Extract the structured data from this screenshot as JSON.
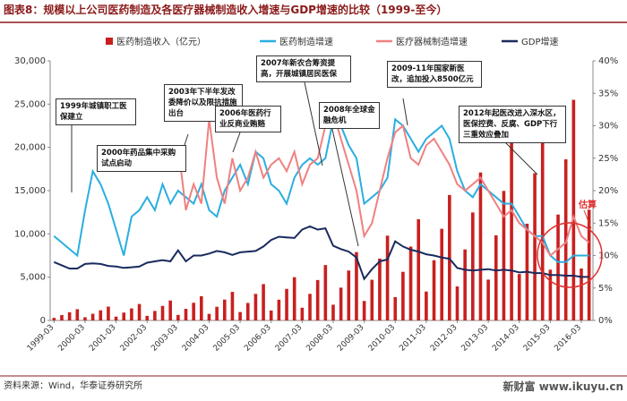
{
  "chart_data": {
    "type": "bar-line",
    "title": "图表8：规模以上公司医药制造及各医疗器械制造收入增速与GDP增速的比较（1999-至今）",
    "source": "资料来源：Wind，华泰证券研究所",
    "watermark": "新财富 www.ikuyu.cn",
    "categories": [
      "1999-03",
      null,
      null,
      null,
      "2000-03",
      null,
      null,
      null,
      "2001-03",
      null,
      null,
      null,
      "2002-03",
      null,
      null,
      null,
      "2003-03",
      null,
      null,
      null,
      "2004-03",
      null,
      null,
      null,
      "2005-03",
      null,
      null,
      null,
      "2006-03",
      null,
      null,
      null,
      "2007-03",
      null,
      null,
      null,
      "2008-03",
      null,
      null,
      null,
      "2009-03",
      null,
      null,
      null,
      "2010-03",
      null,
      null,
      null,
      "2011-03",
      null,
      null,
      null,
      "2012-03",
      null,
      null,
      null,
      "2013-03",
      null,
      null,
      null,
      "2014-03",
      null,
      null,
      null,
      "2015-03",
      null,
      null,
      null,
      "2016-03",
      null
    ],
    "ylim": [
      0,
      30000
    ],
    "yticks": [
      0,
      {
        "value": 5000,
        "label": "5,000"
      },
      {
        "value": 10000,
        "label": "10,000"
      },
      {
        "value": 15000,
        "label": "15,000"
      },
      {
        "value": 20000,
        "label": "20,000"
      },
      {
        "value": 25000,
        "label": "25,000"
      },
      {
        "value": 30000,
        "label": "30,000"
      }
    ],
    "y2lim": [
      0,
      40
    ],
    "y2ticks": [
      {
        "value": 0,
        "label": "0%"
      },
      {
        "value": 5,
        "label": "5%"
      },
      {
        "value": 10,
        "label": "10%"
      },
      {
        "value": 15,
        "label": "15%"
      },
      {
        "value": 20,
        "label": "20%"
      },
      {
        "value": 25,
        "label": "25%"
      },
      {
        "value": 30,
        "label": "30%"
      },
      {
        "value": 35,
        "label": "35%"
      },
      {
        "value": 40,
        "label": "40%"
      }
    ],
    "series": [
      {
        "name": "医药制造收入（亿元）",
        "color": "#c8201f",
        "kind": "bar",
        "values": [
          300,
          620,
          950,
          1300,
          370,
          770,
          1170,
          1600,
          440,
          910,
          1390,
          1900,
          530,
          1100,
          1680,
          2300,
          640,
          1340,
          2040,
          2800,
          760,
          1580,
          2410,
          3300,
          970,
          2020,
          3070,
          4200,
          1150,
          2400,
          3650,
          5000,
          1470,
          3070,
          4670,
          6400,
          1820,
          3790,
          5770,
          7900,
          2250,
          4700,
          7150,
          9800,
          2690,
          5620,
          8540,
          11700,
          3340,
          6960,
          10590,
          14500,
          3930,
          8210,
          12480,
          17100,
          4720,
          9840,
          14970,
          20500,
          5360,
          11180,
          17010,
          23300,
          5870,
          12240,
          18620,
          25500,
          6000,
          12800
        ]
      },
      {
        "name": "医药制造增速",
        "color": "#2aaee0",
        "kind": "line",
        "axis": "y2",
        "values": [
          13,
          12,
          11,
          10,
          17,
          23,
          21,
          18,
          14,
          10,
          16,
          17,
          19,
          17,
          21,
          18,
          20,
          19,
          18,
          21,
          17,
          16,
          20,
          22,
          24,
          21,
          26,
          25,
          21,
          20,
          18,
          22,
          24,
          25,
          24,
          25,
          31,
          30,
          27,
          25,
          18,
          19,
          20,
          22,
          31,
          30,
          28,
          26,
          28,
          29,
          30,
          28,
          23,
          20,
          19,
          21,
          20,
          19,
          18,
          18,
          16,
          14,
          13,
          13,
          10,
          9,
          9,
          10,
          10,
          10
        ]
      },
      {
        "name": "医疗器械制造增速",
        "color": "#f08080",
        "kind": "line",
        "axis": "y2",
        "values": [
          null,
          null,
          null,
          null,
          null,
          null,
          null,
          null,
          null,
          null,
          null,
          null,
          null,
          null,
          null,
          null,
          27,
          17,
          21,
          18,
          31,
          22,
          18,
          25,
          20,
          22,
          26,
          22,
          24,
          25,
          23,
          26,
          21,
          24,
          25,
          30,
          32,
          28,
          24,
          20,
          13,
          15,
          20,
          25,
          29,
          30,
          25,
          24,
          27,
          28,
          26,
          24,
          21,
          20,
          21,
          22,
          20,
          18,
          16,
          17,
          15,
          14,
          13,
          12,
          10,
          11,
          12,
          16,
          13,
          12
        ]
      },
      {
        "name": "GDP增速",
        "color": "#1a2a5e",
        "kind": "line",
        "axis": "y2",
        "values": [
          9,
          8.5,
          8,
          8,
          8.7,
          8.8,
          8.7,
          8.4,
          8.3,
          8.1,
          8.2,
          8.3,
          8.9,
          9.1,
          9.3,
          9.1,
          10.8,
          9.1,
          10,
          10,
          10.3,
          10.7,
          10.5,
          10.1,
          10.5,
          10.6,
          10.7,
          11.4,
          12.4,
          12.9,
          12.8,
          12.7,
          14,
          14.5,
          14,
          14.2,
          11.5,
          11,
          10.6,
          9.7,
          6.4,
          7.9,
          9.1,
          9.4,
          12.2,
          11.4,
          10.9,
          10.6,
          10.2,
          10,
          9.7,
          9.5,
          8.1,
          7.8,
          7.7,
          7.8,
          7.9,
          7.7,
          7.8,
          7.7,
          7.4,
          7.5,
          7.3,
          7.3,
          7,
          7,
          6.9,
          6.9,
          6.7,
          6.7
        ]
      }
    ],
    "annotations": [
      "1999年城镇职工医保建立",
      "2000年药品集中采购试点启动",
      "2003年下半年发改委降价以及限抗措施出台",
      "2006年医药行业反商业贿赂",
      "2007年新农合筹资提高，开展城镇居民医保",
      "2008年全球金融危机",
      "2009-11年国家新医改，追加投入8500亿元",
      "2012年起医改进入深水区，医保控费、反腐、GDP下行三重效应叠加",
      "估算"
    ]
  }
}
